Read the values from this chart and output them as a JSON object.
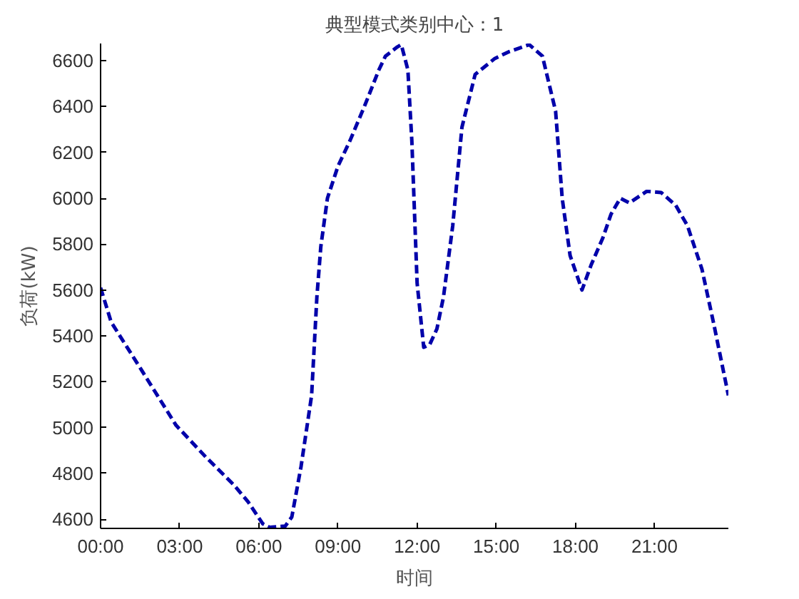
{
  "chart_data": {
    "type": "line",
    "title": "典型模式类别中心：1",
    "xlabel": "时间",
    "ylabel": "负荷(kW)",
    "x": [
      0,
      0.4,
      1.5,
      2.86,
      4,
      5.05,
      5.6,
      6.15,
      6.4,
      7.0,
      7.25,
      7.6,
      8.0,
      8.2,
      8.35,
      8.6,
      9.0,
      9.45,
      10.0,
      10.55,
      10.8,
      11.25,
      11.4,
      11.65,
      11.8,
      12.0,
      12.25,
      12.47,
      12.75,
      13.0,
      13.35,
      13.7,
      14.2,
      14.95,
      15.5,
      16.25,
      16.75,
      17.25,
      17.5,
      17.8,
      18.25,
      18.6,
      19.05,
      19.35,
      19.7,
      20.05,
      20.7,
      21.25,
      21.8,
      22.25,
      22.8,
      23.25,
      23.8
    ],
    "series": [
      {
        "color": "#0000aa",
        "values": [
          5610,
          5460,
          5260,
          5010,
          4870,
          4750,
          4675,
          4580,
          4565,
          4570,
          4610,
          4830,
          5140,
          5570,
          5790,
          6000,
          6140,
          6250,
          6400,
          6560,
          6620,
          6660,
          6670,
          6560,
          6250,
          5630,
          5350,
          5360,
          5430,
          5570,
          5880,
          6310,
          6540,
          6610,
          6640,
          6670,
          6620,
          6380,
          6000,
          5750,
          5600,
          5710,
          5830,
          5930,
          6000,
          5980,
          6030,
          6025,
          5970,
          5880,
          5690,
          5450,
          5140
        ]
      }
    ],
    "xlim": [
      0,
      23.8
    ],
    "ylim": [
      4560,
      6675
    ],
    "xticks": [
      {
        "value": 0,
        "label": "00:00"
      },
      {
        "value": 3,
        "label": "03:00"
      },
      {
        "value": 6,
        "label": "06:00"
      },
      {
        "value": 9,
        "label": "09:00"
      },
      {
        "value": 12,
        "label": "12:00"
      },
      {
        "value": 15,
        "label": "15:00"
      },
      {
        "value": 18,
        "label": "18:00"
      },
      {
        "value": 21,
        "label": "21:00"
      }
    ],
    "yticks": [
      4600,
      4800,
      5000,
      5200,
      5400,
      5600,
      5800,
      6000,
      6200,
      6400,
      6600
    ],
    "grid": false,
    "marker": "none",
    "line_style": "dashed"
  }
}
